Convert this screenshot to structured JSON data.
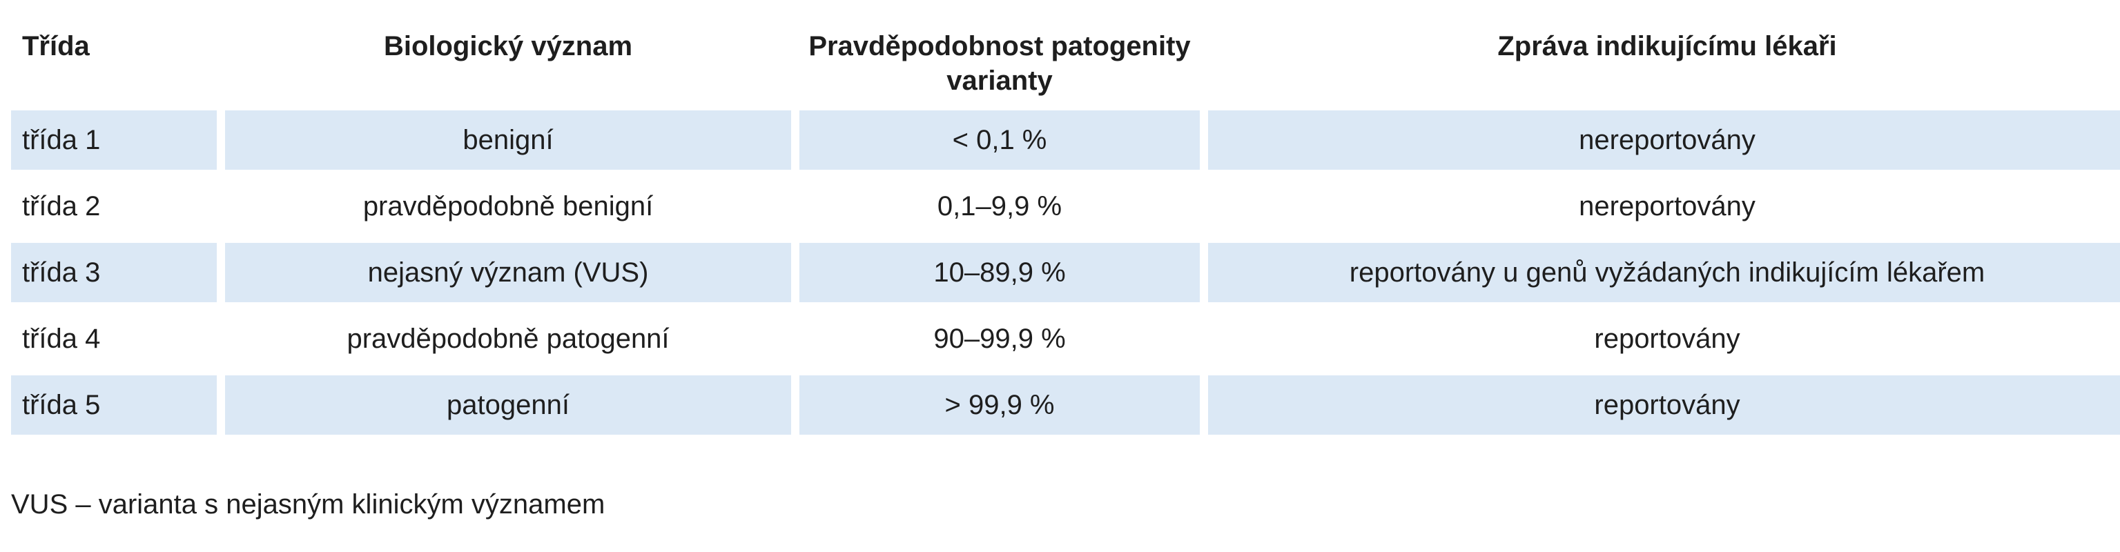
{
  "table": {
    "headers": [
      "Třída",
      "Biologický význam",
      "Pravděpodobnost patogenity varianty",
      "Zpráva indikujícímu lékaři"
    ],
    "rows": [
      [
        "třída 1",
        "benigní",
        "< 0,1 %",
        "nereportovány"
      ],
      [
        "třída 2",
        "pravděpodobně benigní",
        "0,1–9,9 %",
        "nereportovány"
      ],
      [
        "třída 3",
        "nejasný význam (VUS)",
        "10–89,9 %",
        "reportovány u genů vyžádaných indikujícím lékařem"
      ],
      [
        "třída 4",
        "pravděpodobně patogenní",
        "90–99,9 %",
        "reportovány"
      ],
      [
        "třída 5",
        "patogenní",
        "> 99,9 %",
        "reportovány"
      ]
    ]
  },
  "footnote": "VUS – varianta s nejasným klinickým významem",
  "colors": {
    "row_shading": "#dbe8f5",
    "text": "#1e1e1e"
  }
}
